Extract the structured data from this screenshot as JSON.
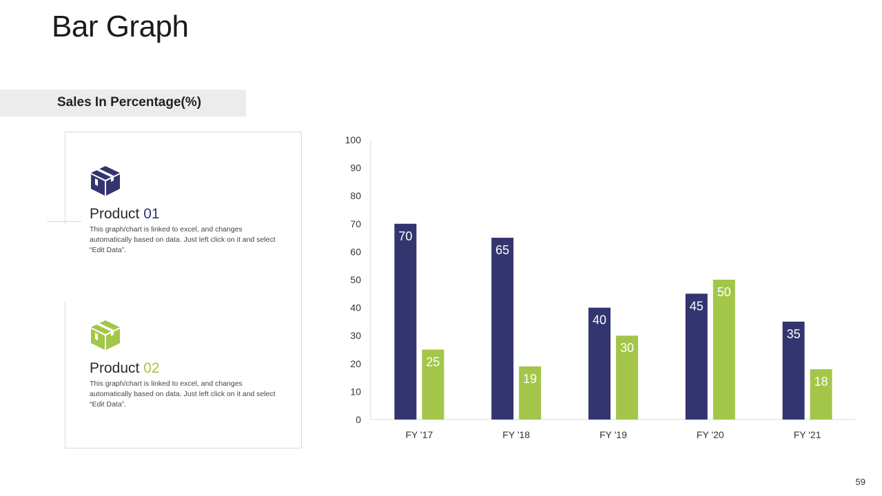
{
  "page": {
    "title": "Bar Graph",
    "section_title": "Sales In Percentage(%)",
    "page_number": "59"
  },
  "products": [
    {
      "name": "Product",
      "number": "01",
      "description": "This graph/chart is linked to excel, and changes automatically based on data. Just left click on it and select “Edit Data”.",
      "icon": "box-icon",
      "color": "#33356f"
    },
    {
      "name": "Product",
      "number": "02",
      "description": "This graph/chart is linked to excel, and changes automatically based on data. Just left click on it and select “Edit Data”.",
      "icon": "box-icon",
      "color": "#a3c64a"
    }
  ],
  "chart_data": {
    "type": "bar",
    "categories": [
      "FY '17",
      "FY '18",
      "FY '19",
      "FY '20",
      "FY '21"
    ],
    "series": [
      {
        "values": [
          70,
          65,
          40,
          45,
          35
        ],
        "color": "#33356f"
      },
      {
        "values": [
          25,
          19,
          30,
          50,
          18
        ],
        "color": "#a3c64a"
      }
    ],
    "ylim": [
      0,
      100
    ],
    "yticks": [
      0,
      10,
      20,
      30,
      40,
      50,
      60,
      70,
      80,
      90,
      100
    ],
    "grid": false,
    "data_labels": true
  }
}
